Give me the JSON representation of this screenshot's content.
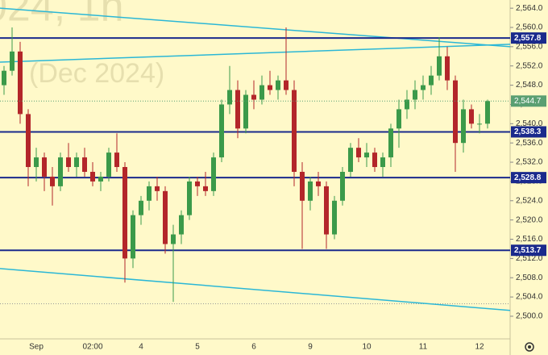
{
  "chart_data": {
    "type": "candlestick",
    "watermark": "024, 1h",
    "watermark_sub": "(Dec 2024)",
    "categories": [
      null,
      null,
      null,
      null,
      "Sep",
      null,
      null,
      null,
      null,
      null,
      null,
      "02:00",
      null,
      null,
      null,
      null,
      null,
      "4",
      null,
      null,
      null,
      null,
      null,
      null,
      "5",
      null,
      null,
      null,
      null,
      null,
      null,
      "6",
      null,
      null,
      null,
      null,
      null,
      null,
      "9",
      null,
      null,
      null,
      null,
      null,
      null,
      "10",
      null,
      null,
      null,
      null,
      null,
      null,
      "11",
      null,
      null,
      null,
      null,
      null,
      null,
      "12",
      null
    ],
    "open": [
      2548,
      2551,
      2555,
      2542,
      2531,
      2533,
      2529,
      2527,
      2533,
      2531,
      2533,
      2530,
      2528,
      2529,
      2534,
      2531,
      2512,
      2521,
      2524,
      2527,
      2526,
      2515,
      2517,
      2521,
      2528,
      2527,
      2526,
      2533,
      2544,
      2547,
      2539,
      2546,
      2545,
      2548,
      2547,
      2549,
      2547,
      2530,
      2524,
      2528,
      2527,
      2517,
      2524,
      2530,
      2535,
      2533,
      2534,
      2531,
      2533,
      2539,
      2543,
      2545,
      2547,
      2548,
      2550,
      2554,
      2549,
      2536,
      2543,
      2540,
      2540
    ],
    "high": [
      2552,
      2560,
      2557,
      2543,
      2535,
      2534,
      2531,
      2534,
      2536,
      2534,
      2535,
      2532,
      2530,
      2535,
      2538,
      2532,
      2522,
      2525,
      2528,
      2529,
      2527,
      2519,
      2522,
      2529,
      2529,
      2530,
      2534,
      2545,
      2552,
      2549,
      2547,
      2549,
      2550,
      2551,
      2550,
      2560,
      2549,
      2532,
      2529,
      2530,
      2528,
      2525,
      2531,
      2536,
      2537,
      2536,
      2535,
      2534,
      2540,
      2545,
      2547,
      2549,
      2550,
      2552,
      2558,
      2556,
      2550,
      2545,
      2544,
      2542,
      2545
    ],
    "low": [
      2546,
      2550,
      2540,
      2527,
      2528,
      2526,
      2523,
      2526,
      2530,
      2529,
      2529,
      2527,
      2526,
      2528,
      2530,
      2507,
      2510,
      2519,
      2522,
      2524,
      2513,
      2503,
      2515,
      2520,
      2525,
      2525,
      2525,
      2532,
      2542,
      2537,
      2538,
      2543,
      2544,
      2546,
      2545,
      2546,
      2527,
      2514,
      2522,
      2525,
      2514,
      2516,
      2523,
      2529,
      2532,
      2531,
      2530,
      2529,
      2531,
      2535,
      2541,
      2543,
      2545,
      2546,
      2549,
      2547,
      2530,
      2534,
      2539,
      2538,
      2539
    ],
    "close": [
      2551,
      2555,
      2542,
      2531,
      2533,
      2529,
      2527,
      2533,
      2531,
      2533,
      2530,
      2528,
      2529,
      2534,
      2531,
      2512,
      2521,
      2524,
      2527,
      2526,
      2515,
      2517,
      2521,
      2528,
      2527,
      2526,
      2533,
      2544,
      2547,
      2539,
      2546,
      2545,
      2548,
      2547,
      2549,
      2547,
      2530,
      2524,
      2528,
      2527,
      2517,
      2524,
      2530,
      2535,
      2533,
      2534,
      2531,
      2533,
      2539,
      2543,
      2545,
      2547,
      2548,
      2550,
      2554,
      2549,
      2536,
      2543,
      2540,
      2540,
      2544.7
    ],
    "up_color": "#3b9a4a",
    "down_color": "#b3262a",
    "ylim": [
      2495.3,
      2565.7
    ],
    "yticks": [
      {
        "value": 2500,
        "label": "2,500.0"
      },
      {
        "value": 2504,
        "label": "2,504.0"
      },
      {
        "value": 2508,
        "label": "2,508.0"
      },
      {
        "value": 2512,
        "label": "2,512.0"
      },
      {
        "value": 2516,
        "label": "2,516.0"
      },
      {
        "value": 2520,
        "label": "2,520.0"
      },
      {
        "value": 2524,
        "label": "2,524.0"
      },
      {
        "value": 2528,
        "label": "2,528.0"
      },
      {
        "value": 2532,
        "label": "2,532.0"
      },
      {
        "value": 2536,
        "label": "2,536.0"
      },
      {
        "value": 2540,
        "label": "2,540.0"
      },
      {
        "value": 2544,
        "label": "2,544.0"
      },
      {
        "value": 2548,
        "label": "2,548.0"
      },
      {
        "value": 2552,
        "label": "2,552.0"
      },
      {
        "value": 2556,
        "label": "2,556.0"
      },
      {
        "value": 2560,
        "label": "2,560.0"
      },
      {
        "value": 2564,
        "label": "2,564.0"
      }
    ],
    "levels": [
      {
        "value": 2557.8,
        "label": "2,557.8"
      },
      {
        "value": 2538.3,
        "label": "2,538.3"
      },
      {
        "value": 2528.8,
        "label": "2,528.8"
      },
      {
        "value": 2513.7,
        "label": "2,513.7"
      }
    ],
    "level_color": "#1a2a8c",
    "trend_lines": [
      {
        "from": 2564,
        "to": 2556
      },
      {
        "from": 2552.8,
        "to": 2556.5
      },
      {
        "from": 2509.9,
        "to": 2501.2
      }
    ],
    "trend_color": "#2bb7d6",
    "last_price": {
      "value": 2544.7,
      "label": "2,544.7"
    },
    "last_color": "#5a9f72",
    "reference_line": 2502.6,
    "grid": false
  }
}
